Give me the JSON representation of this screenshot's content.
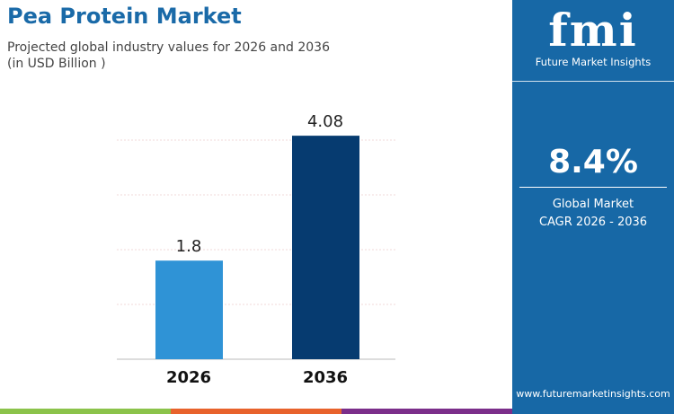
{
  "title": "Pea Protein Market",
  "subtitle_line1": "Projected global industry values for 2026 and 2036",
  "subtitle_line2": "(in USD Billion )",
  "panel": {
    "logo_text": "fmi",
    "logo_sub": "Future Market Insights",
    "cagr": "8.4%",
    "cagr_label1": "Global Market",
    "cagr_label2": "CAGR 2026 - 2036",
    "url": "www.futuremarketinsights.com"
  },
  "colors": {
    "bar2026": "#2f93d6",
    "bar2036": "#063b70",
    "panel": "#1768a6",
    "stripes": [
      "#8bc34a",
      "#e8622c",
      "#7b2e8a"
    ]
  },
  "chart_data": {
    "type": "bar",
    "categories": [
      "2026",
      "2036"
    ],
    "values": [
      1.8,
      4.08
    ],
    "labels": [
      "1.8",
      "4.08"
    ],
    "title": "Pea Protein Market",
    "xlabel": "",
    "ylabel": "",
    "ylim": [
      0,
      4.08
    ],
    "grid": true
  }
}
